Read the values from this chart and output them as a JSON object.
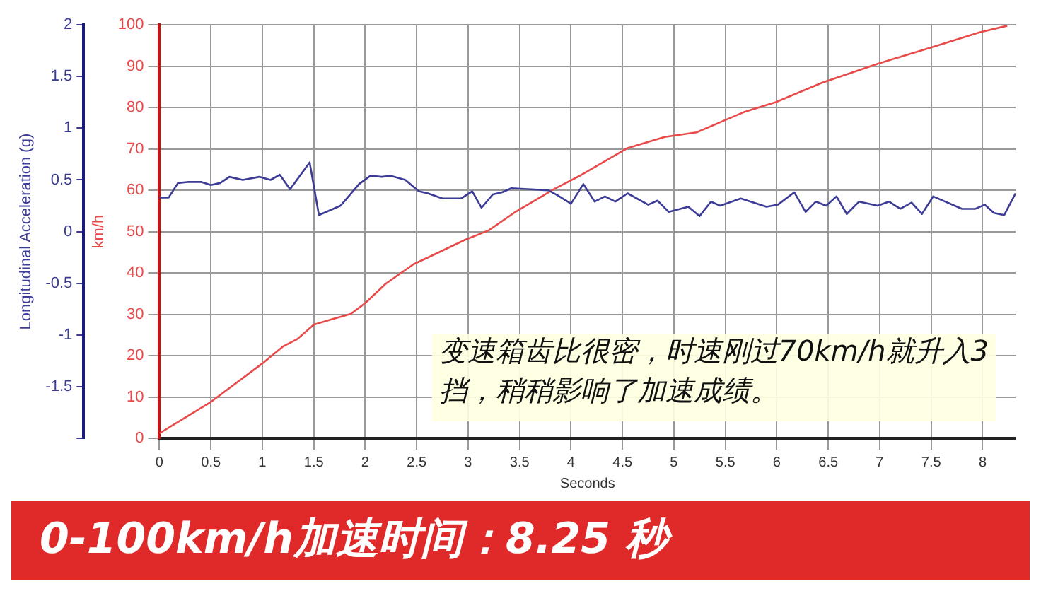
{
  "chart_data": {
    "type": "line",
    "title": "0-100km/h加速时间：8.25 秒",
    "xlabel": "Seconds",
    "ylabel": "Longitudinal Acceleration (g)",
    "y2label": "km/h",
    "annotations": [
      "变速箱齿比很密，时速刚过70km/h就升入3挡，稍稍影响了加速成绩。"
    ],
    "xlim": [
      0,
      8.32
    ],
    "xticks": [
      0,
      0.5,
      1,
      1.5,
      2,
      2.5,
      3,
      3.5,
      4,
      4.5,
      5,
      5.5,
      6,
      6.5,
      7,
      7.5,
      8
    ],
    "ylim": [
      -2,
      2
    ],
    "yticks": [
      {
        "value": -2,
        "label": null
      },
      -1.5,
      -1,
      -0.5,
      0,
      0.5,
      1,
      1.5,
      2
    ],
    "y2lim": [
      0,
      100
    ],
    "y2ticks": [
      0,
      10,
      20,
      30,
      40,
      50,
      60,
      70,
      80,
      90,
      100
    ],
    "grid": true,
    "marker": "none",
    "line_style": "solid",
    "series": [
      {
        "color": "#3c3c96",
        "x": [
          0,
          0.09,
          0.18,
          0.27,
          0.41,
          0.5,
          0.59,
          0.68,
          0.81,
          0.97,
          1.08,
          1.17,
          1.27,
          1.46,
          1.55,
          1.76,
          1.94,
          2.05,
          2.16,
          2.25,
          2.39,
          2.52,
          2.61,
          2.75,
          2.93,
          3.04,
          3.13,
          3.24,
          3.33,
          3.42,
          3.78,
          3.87,
          4.0,
          4.12,
          4.23,
          4.33,
          4.43,
          4.55,
          4.75,
          4.84,
          4.95,
          5.14,
          5.25,
          5.36,
          5.45,
          5.65,
          5.9,
          6.01,
          6.17,
          6.28,
          6.38,
          6.48,
          6.58,
          6.68,
          6.8,
          6.98,
          7.09,
          7.2,
          7.31,
          7.41,
          7.52,
          7.8,
          7.93,
          8.02,
          8.11,
          8.21,
          8.32
        ],
        "values": [
          0.33,
          0.33,
          0.47,
          0.48,
          0.48,
          0.45,
          0.47,
          0.53,
          0.5,
          0.53,
          0.5,
          0.55,
          0.41,
          0.67,
          0.16,
          0.25,
          0.46,
          0.54,
          0.53,
          0.54,
          0.5,
          0.39,
          0.37,
          0.32,
          0.32,
          0.39,
          0.23,
          0.36,
          0.38,
          0.42,
          0.4,
          0.35,
          0.27,
          0.46,
          0.29,
          0.34,
          0.29,
          0.37,
          0.26,
          0.3,
          0.19,
          0.24,
          0.15,
          0.29,
          0.25,
          0.32,
          0.24,
          0.26,
          0.38,
          0.19,
          0.29,
          0.25,
          0.34,
          0.17,
          0.29,
          0.25,
          0.29,
          0.22,
          0.28,
          0.17,
          0.34,
          0.22,
          0.22,
          0.26,
          0.18,
          0.16,
          0.37
        ]
      },
      {
        "color": "#e84a4a",
        "axis": "y2",
        "x": [
          0,
          0.5,
          1.0,
          1.2,
          1.34,
          1.5,
          1.66,
          1.86,
          2.0,
          2.2,
          2.47,
          2.7,
          2.97,
          3.2,
          3.45,
          3.83,
          4.1,
          4.55,
          4.91,
          5.22,
          5.68,
          5.99,
          6.44,
          6.98,
          7.52,
          7.97,
          8.24
        ],
        "values": [
          1.2,
          8.8,
          18.1,
          22.2,
          24,
          27.5,
          28.7,
          30.1,
          32.7,
          37.4,
          42.1,
          44.8,
          48,
          50.3,
          54.6,
          60.2,
          63.7,
          70.2,
          72.9,
          74,
          78.9,
          81.3,
          86,
          90.6,
          94.7,
          98.2,
          99.8
        ]
      }
    ]
  }
}
